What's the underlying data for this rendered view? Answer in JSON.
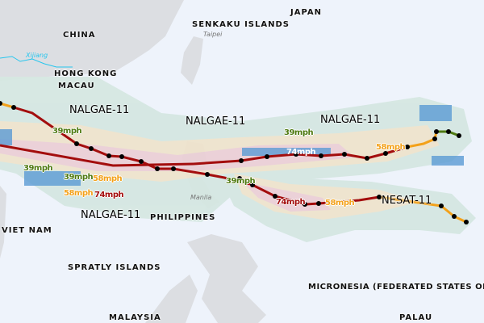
{
  "map": {
    "countries": [
      "CHINA",
      "JAPAN",
      "SENKAKU ISLANDS",
      "HONG KONG",
      "MACAU",
      "PHILIPPINES",
      "VIET NAM",
      "SPRATLY ISLANDS",
      "MICRONESIA (FEDERATED STATES OF)",
      "MALAYSIA",
      "PALAU"
    ],
    "cities": [
      "Taipei",
      "Manila"
    ],
    "rivers": [
      "Xijiang"
    ]
  },
  "storms": [
    {
      "name": "NALGAE-11",
      "labels": [
        "NALGAE-11",
        "NALGAE-11",
        "NALGAE-11",
        "NALGAE-11",
        "NALGAE-11"
      ]
    },
    {
      "name": "NESAT-11",
      "labels": [
        "NESAT-11"
      ]
    }
  ],
  "wind_labels": [
    "39mph",
    "39mph",
    "39mph",
    "58mph",
    "58mph",
    "74mph",
    "39mph",
    "74mph",
    "58mph",
    "39mph",
    "74mph",
    "58mph"
  ],
  "colors": {
    "land": "#dcdee2",
    "sea": "#eef3fb",
    "swath_39": "#d5e7e1",
    "swath_58": "#efe3cc",
    "swath_74": "#ebcfd6",
    "track_74": "#a30d0d",
    "track_58": "#f3a11a",
    "track_39": "#4f7a12",
    "rain": "#5b9bd5"
  }
}
